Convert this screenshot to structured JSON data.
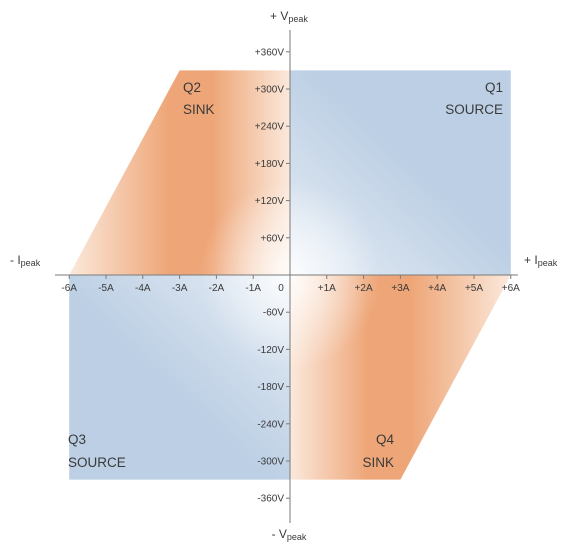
{
  "colors": {
    "source_blue": "#bccfe4",
    "source_blue_light": "#e6edf5",
    "sink_orange": "#eea678",
    "sink_orange_light": "#fbe9dc",
    "axis": "#7a7a7a",
    "text": "#3a3a3a"
  },
  "axes": {
    "x_pos": {
      "prefix": "+ I",
      "sub": "peak"
    },
    "x_neg": {
      "prefix": "- I",
      "sub": "peak"
    },
    "y_pos": {
      "prefix": "+ V",
      "sub": "peak"
    },
    "y_neg": {
      "prefix": "- V",
      "sub": "peak"
    }
  },
  "origin_label": "0",
  "x_ticks": [
    {
      "value": -6,
      "label": "-6A"
    },
    {
      "value": -5,
      "label": "-5A"
    },
    {
      "value": -4,
      "label": "-4A"
    },
    {
      "value": -3,
      "label": "-3A"
    },
    {
      "value": -2,
      "label": "-2A"
    },
    {
      "value": -1,
      "label": "-1A"
    },
    {
      "value": 1,
      "label": "+1A"
    },
    {
      "value": 2,
      "label": "+2A"
    },
    {
      "value": 3,
      "label": "+3A"
    },
    {
      "value": 4,
      "label": "+4A"
    },
    {
      "value": 5,
      "label": "+5A"
    },
    {
      "value": 6,
      "label": "+6A"
    }
  ],
  "y_ticks": [
    {
      "value": 360,
      "label": "+360V"
    },
    {
      "value": 300,
      "label": "+300V"
    },
    {
      "value": 240,
      "label": "+240V"
    },
    {
      "value": 180,
      "label": "+180V"
    },
    {
      "value": 120,
      "label": "+120V"
    },
    {
      "value": 60,
      "label": "+60V"
    },
    {
      "value": -60,
      "label": "-60V"
    },
    {
      "value": -120,
      "label": "-120V"
    },
    {
      "value": -180,
      "label": "-180V"
    },
    {
      "value": -240,
      "label": "-240V"
    },
    {
      "value": -300,
      "label": "-300V"
    },
    {
      "value": -360,
      "label": "-360V"
    }
  ],
  "quadrants": [
    {
      "id": "q1",
      "name": "Q1",
      "mode": "SOURCE",
      "region": [
        [
          0,
          0
        ],
        [
          6,
          0
        ],
        [
          6,
          330
        ],
        [
          0,
          330
        ]
      ]
    },
    {
      "id": "q2",
      "name": "Q2",
      "mode": "SINK",
      "region": [
        [
          0,
          0
        ],
        [
          0,
          330
        ],
        [
          -3,
          330
        ],
        [
          -6,
          0
        ]
      ]
    },
    {
      "id": "q3",
      "name": "Q3",
      "mode": "SOURCE",
      "region": [
        [
          0,
          0
        ],
        [
          -6,
          0
        ],
        [
          -6,
          -330
        ],
        [
          0,
          -330
        ]
      ]
    },
    {
      "id": "q4",
      "name": "Q4",
      "mode": "SINK",
      "region": [
        [
          0,
          0
        ],
        [
          6,
          0
        ],
        [
          3,
          -330
        ],
        [
          0,
          -330
        ]
      ]
    }
  ]
}
